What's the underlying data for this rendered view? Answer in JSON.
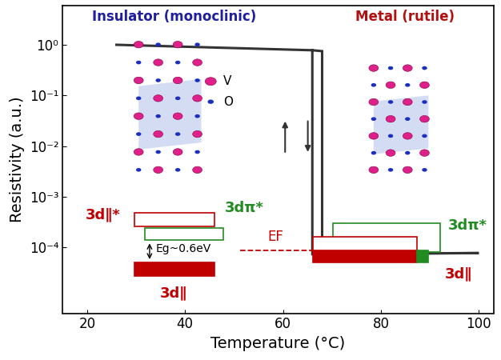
{
  "chart_data": {
    "type": "line",
    "x_label": "Temperature (°C)",
    "y_label": "Resistivity (a.u.)",
    "x": [
      26,
      66,
      68,
      68,
      100,
      66,
      66
    ],
    "values": [
      1.0,
      0.78,
      0.75,
      7.5e-05,
      7.7e-05,
      7.3e-05,
      0.78
    ],
    "color": "#333333",
    "log": "y",
    "xlim": [
      15,
      103
    ],
    "ylim": [
      5e-06,
      6
    ],
    "xticks": [
      20,
      40,
      60,
      80,
      100
    ],
    "yticks": [
      {
        "value": 0.0001,
        "label": "10⁻⁴"
      },
      {
        "value": 0.001,
        "label": "10⁻³"
      },
      {
        "value": 0.01,
        "label": "10⁻²"
      },
      {
        "value": 0.1,
        "label": "10⁻¹"
      },
      {
        "value": 1,
        "label": "10⁰"
      }
    ],
    "annotations": {
      "insulator_title": "Insulator (monoclinic)",
      "metal_title": "Metal (rutile)",
      "atom_v": "V",
      "atom_o": "O",
      "insulator_upper": "3d∥*",
      "insulator_pi": "3dπ*",
      "gap": "Eg~0.6eV",
      "insulator_lower": "3d∥",
      "fermi": "EF",
      "metal_pi": "3dπ*",
      "metal_lower": "3d∥"
    }
  }
}
